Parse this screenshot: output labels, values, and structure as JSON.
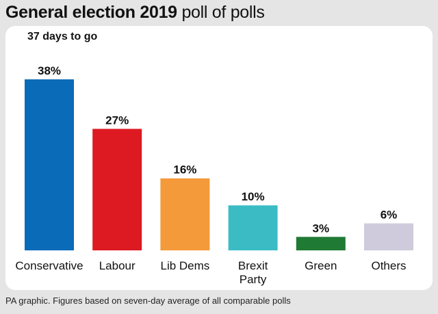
{
  "header": {
    "title_bold": "General election 2019",
    "title_light": "poll of polls",
    "subtitle": "37 days to go"
  },
  "chart_data": {
    "type": "bar",
    "title": "General election 2019 poll of polls",
    "subtitle": "37 days to go",
    "categories": [
      "Conservative",
      "Labour",
      "Lib Dems",
      "Brexit Party",
      "Green",
      "Others"
    ],
    "category_lines": [
      [
        "Conservative"
      ],
      [
        "Labour"
      ],
      [
        "Lib Dems"
      ],
      [
        "Brexit",
        "Party"
      ],
      [
        "Green"
      ],
      [
        "Others"
      ]
    ],
    "values": [
      38,
      27,
      16,
      10,
      3,
      6
    ],
    "value_labels": [
      "38%",
      "27%",
      "16%",
      "10%",
      "3%",
      "6%"
    ],
    "colors": [
      "#0a6bb8",
      "#dd1a22",
      "#f49a3a",
      "#3bbcc5",
      "#1f7a34",
      "#cfcadc"
    ],
    "unit": "%",
    "xlabel": "",
    "ylabel": "",
    "ylim": [
      0,
      38
    ],
    "grid": false
  },
  "footer": {
    "note": "PA graphic. Figures based on seven-day average of all comparable polls"
  }
}
